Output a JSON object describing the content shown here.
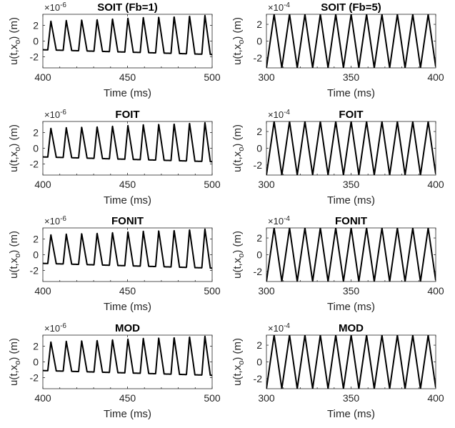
{
  "chart_data": [
    {
      "type": "line",
      "title": "SOIT (Fb=1)",
      "xlabel": "Time (ms)",
      "ylabel": "u(t,x_o) (m)",
      "exponent": "×10",
      "exponent_power": "-6",
      "xlim": [
        400,
        500
      ],
      "ylim": [
        -3.4,
        3.4
      ],
      "xticks": [
        "400",
        "450",
        "500"
      ],
      "yticks": [
        "2",
        "0",
        "-2"
      ],
      "series": [
        {
          "period": 9.1,
          "phase": 400.0,
          "peak_start": 2.5,
          "peak_end": 3.3,
          "trough_start": -1.1,
          "trough_end": -1.7,
          "trough_frac": 0.32,
          "rise_frac": 0.2,
          "fall_frac": 0.35
        }
      ]
    },
    {
      "type": "line",
      "title": "SOIT (Fb=5)",
      "xlabel": "Time (ms)",
      "ylabel": "u(t,x_o) (m)",
      "exponent": "×10",
      "exponent_power": "-4",
      "xlim": [
        300,
        400
      ],
      "ylim": [
        -3.2,
        3.2
      ],
      "xticks": [
        "300",
        "350",
        "400"
      ],
      "yticks": [
        "2",
        "0",
        "-2"
      ],
      "series": [
        {
          "period": 9.1,
          "phase": 300.0,
          "peak_start": 3.2,
          "peak_end": 3.2,
          "trough_start": -3.2,
          "trough_end": -3.2,
          "trough_frac": 0.0,
          "rise_frac": 0.5,
          "fall_frac": 0.5
        }
      ]
    },
    {
      "type": "line",
      "title": "FOIT",
      "xlabel": "Time (ms)",
      "ylabel": "u(t,x_o) (m)",
      "exponent": "×10",
      "exponent_power": "-6",
      "xlim": [
        400,
        500
      ],
      "ylim": [
        -3.4,
        3.4
      ],
      "xticks": [
        "400",
        "450",
        "500"
      ],
      "yticks": [
        "2",
        "0",
        "-2"
      ],
      "series": [
        {
          "period": 9.1,
          "phase": 400.0,
          "peak_start": 2.5,
          "peak_end": 3.3,
          "trough_start": -1.1,
          "trough_end": -1.7,
          "trough_frac": 0.32,
          "rise_frac": 0.2,
          "fall_frac": 0.35
        }
      ]
    },
    {
      "type": "line",
      "title": "FOIT",
      "xlabel": "Time (ms)",
      "ylabel": "u(t,x_o) (m)",
      "exponent": "×10",
      "exponent_power": "-4",
      "xlim": [
        300,
        400
      ],
      "ylim": [
        -3.2,
        3.2
      ],
      "xticks": [
        "300",
        "350",
        "400"
      ],
      "yticks": [
        "2",
        "0",
        "-2"
      ],
      "series": [
        {
          "period": 9.1,
          "phase": 300.0,
          "peak_start": 3.2,
          "peak_end": 3.2,
          "trough_start": -3.2,
          "trough_end": -3.2,
          "trough_frac": 0.0,
          "rise_frac": 0.5,
          "fall_frac": 0.5
        }
      ]
    },
    {
      "type": "line",
      "title": "FONIT",
      "xlabel": "Time (ms)",
      "ylabel": "u(t,x_o) (m)",
      "exponent": "×10",
      "exponent_power": "-6",
      "xlim": [
        400,
        500
      ],
      "ylim": [
        -3.4,
        3.4
      ],
      "xticks": [
        "400",
        "450",
        "500"
      ],
      "yticks": [
        "2",
        "0",
        "-2"
      ],
      "series": [
        {
          "period": 9.1,
          "phase": 400.0,
          "peak_start": 2.5,
          "peak_end": 3.3,
          "trough_start": -1.1,
          "trough_end": -1.7,
          "trough_frac": 0.32,
          "rise_frac": 0.2,
          "fall_frac": 0.35
        }
      ]
    },
    {
      "type": "line",
      "title": "FONIT",
      "xlabel": "Time (ms)",
      "ylabel": "u(t,x_o) (m)",
      "exponent": "×10",
      "exponent_power": "-4",
      "xlim": [
        300,
        400
      ],
      "ylim": [
        -3.2,
        3.2
      ],
      "xticks": [
        "300",
        "350",
        "400"
      ],
      "yticks": [
        "2",
        "0",
        "-2"
      ],
      "series": [
        {
          "period": 9.1,
          "phase": 300.0,
          "peak_start": 3.2,
          "peak_end": 3.2,
          "trough_start": -3.2,
          "trough_end": -3.2,
          "trough_frac": 0.0,
          "rise_frac": 0.5,
          "fall_frac": 0.5
        }
      ]
    },
    {
      "type": "line",
      "title": "MOD",
      "xlabel": "Time (ms)",
      "ylabel": "u(t,x_o) (m)",
      "exponent": "×10",
      "exponent_power": "-6",
      "xlim": [
        400,
        500
      ],
      "ylim": [
        -3.4,
        3.4
      ],
      "xticks": [
        "400",
        "450",
        "500"
      ],
      "yticks": [
        "2",
        "0",
        "-2"
      ],
      "series": [
        {
          "period": 9.1,
          "phase": 400.0,
          "peak_start": 2.5,
          "peak_end": 3.3,
          "trough_start": -1.1,
          "trough_end": -1.7,
          "trough_frac": 0.32,
          "rise_frac": 0.2,
          "fall_frac": 0.35
        }
      ]
    },
    {
      "type": "line",
      "title": "MOD",
      "xlabel": "Time (ms)",
      "ylabel": "u(t,x_o) (m)",
      "exponent": "×10",
      "exponent_power": "-4",
      "xlim": [
        300,
        400
      ],
      "ylim": [
        -3.2,
        3.2
      ],
      "xticks": [
        "300",
        "350",
        "400"
      ],
      "yticks": [
        "2",
        "0",
        "-2"
      ],
      "series": [
        {
          "period": 9.1,
          "phase": 300.0,
          "peak_start": 3.2,
          "peak_end": 3.2,
          "trough_start": -3.2,
          "trough_end": -3.2,
          "trough_frac": 0.0,
          "rise_frac": 0.5,
          "fall_frac": 0.5
        }
      ]
    }
  ]
}
